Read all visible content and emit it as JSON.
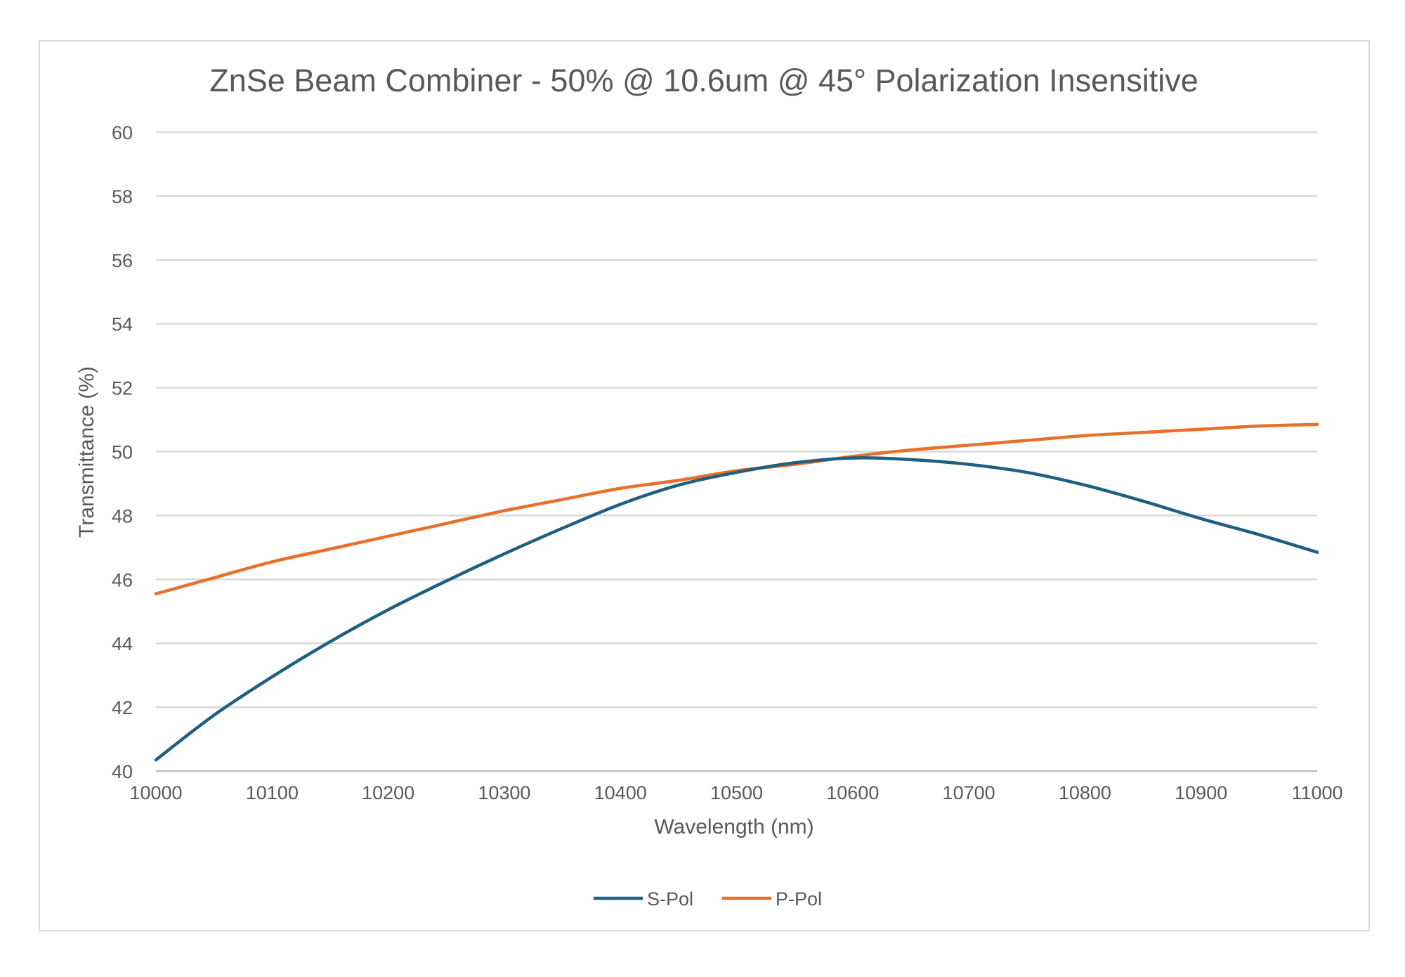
{
  "chart_data": {
    "type": "line",
    "title": "ZnSe Beam Combiner - 50% @ 10.6um @ 45° Polarization Insensitive",
    "xlabel": "Wavelength (nm)",
    "ylabel": "Transmittance (%)",
    "xlim": [
      10000,
      11000
    ],
    "ylim": [
      40,
      60
    ],
    "x_ticks": [
      10000,
      10100,
      10200,
      10300,
      10400,
      10500,
      10600,
      10700,
      10800,
      10900,
      11000
    ],
    "y_ticks": [
      40,
      42,
      44,
      46,
      48,
      50,
      52,
      54,
      56,
      58,
      60
    ],
    "grid": "horizontal",
    "legend_position": "bottom",
    "x": [
      10000,
      10050,
      10100,
      10150,
      10200,
      10250,
      10300,
      10350,
      10400,
      10450,
      10500,
      10550,
      10600,
      10650,
      10700,
      10750,
      10800,
      10850,
      10900,
      10950,
      11000
    ],
    "series": [
      {
        "name": "S-Pol",
        "color": "#1f5f7f",
        "values": [
          40.35,
          41.75,
          42.95,
          44.05,
          45.05,
          45.95,
          46.8,
          47.6,
          48.35,
          48.95,
          49.35,
          49.65,
          49.8,
          49.75,
          49.6,
          49.35,
          48.95,
          48.45,
          47.9,
          47.4,
          46.85
        ]
      },
      {
        "name": "P-Pol",
        "color": "#e8702a",
        "values": [
          45.55,
          46.05,
          46.55,
          46.95,
          47.35,
          47.75,
          48.15,
          48.5,
          48.85,
          49.1,
          49.4,
          49.6,
          49.85,
          50.05,
          50.2,
          50.35,
          50.5,
          50.6,
          50.7,
          50.8,
          50.85
        ]
      }
    ]
  }
}
